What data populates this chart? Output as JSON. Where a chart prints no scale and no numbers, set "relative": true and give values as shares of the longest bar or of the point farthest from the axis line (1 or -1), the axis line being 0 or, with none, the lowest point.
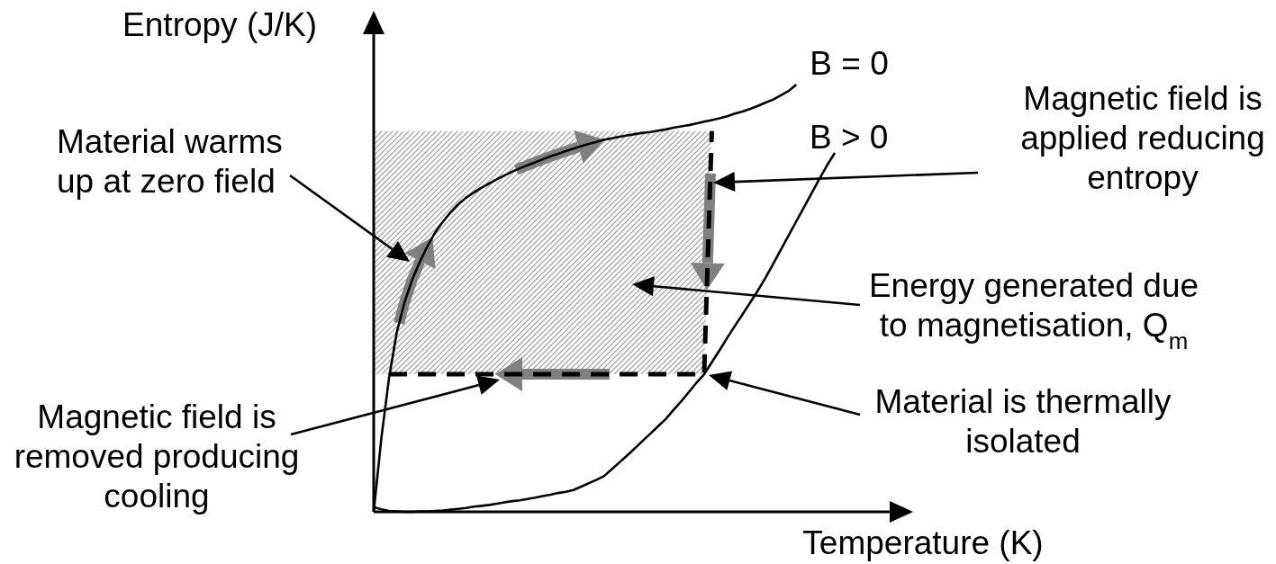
{
  "chart_data": {
    "type": "line",
    "relative": true,
    "xlabel": "Temperature (K)",
    "ylabel": "Entropy (J/K)",
    "categories": [
      null,
      null,
      null,
      null,
      null,
      null,
      null,
      null,
      null,
      null,
      null,
      null,
      null,
      null,
      null,
      null,
      null,
      null,
      null,
      null,
      null,
      null,
      null,
      null,
      null,
      null,
      null,
      null,
      null,
      null,
      null,
      null,
      null,
      null,
      null,
      null,
      null,
      null,
      null,
      null,
      null,
      null,
      null,
      null,
      null,
      null,
      null,
      null,
      null,
      null,
      null,
      null,
      null,
      null,
      null,
      null,
      null,
      null,
      null,
      null,
      null
    ],
    "series": [
      {
        "color": "#a6a6a6",
        "values": [
          null,
          null,
          null,
          null,
          null,
          null,
          null,
          null,
          null,
          null,
          null,
          null,
          null,
          null,
          null,
          null,
          null,
          null,
          null,
          null,
          null,
          null,
          null,
          null,
          null,
          null,
          null,
          null,
          null,
          null,
          null,
          null,
          null,
          null,
          null,
          null,
          null,
          null,
          null,
          null,
          null,
          null,
          null,
          null,
          null,
          null,
          null,
          null,
          null,
          null,
          null,
          null,
          null,
          null,
          null,
          null,
          null,
          null,
          null,
          null,
          null
        ],
        "upper": [
          0.891,
          0.891,
          0.891,
          0.891,
          0.891,
          0.891,
          0.891,
          0.891,
          0.891,
          0.891,
          0.891,
          0.891,
          0.891,
          0.891,
          0.891,
          0.891,
          0.891,
          0.891,
          0.891,
          0.891,
          0.891,
          0.891,
          0.891,
          0.891,
          0.891,
          0.891,
          0.891,
          0.891,
          0.891,
          0.891,
          0.891,
          0.891,
          0.891,
          0.891,
          0.891,
          0.891,
          0.891,
          0.891,
          0.891,
          0.891,
          0.891,
          0.891,
          0.891,
          0.891,
          0.891,
          null,
          null,
          null,
          null,
          null,
          null,
          null,
          null,
          null,
          null,
          null,
          null,
          null,
          null,
          null,
          null
        ],
        "lower": [
          0.322,
          0.322,
          0.322,
          0.322,
          0.322,
          0.322,
          0.322,
          0.322,
          0.322,
          0.322,
          0.322,
          0.322,
          0.322,
          0.322,
          0.322,
          0.322,
          0.322,
          0.322,
          0.322,
          0.322,
          0.322,
          0.322,
          0.322,
          0.322,
          0.322,
          0.322,
          0.322,
          0.322,
          0.322,
          0.322,
          0.322,
          0.322,
          0.322,
          0.322,
          0.322,
          0.322,
          0.322,
          0.322,
          0.322,
          0.322,
          0.322,
          0.322,
          0.322,
          0.322,
          0.891,
          null,
          null,
          null,
          null,
          null,
          null,
          null,
          null,
          null,
          null,
          null,
          null,
          null,
          null,
          null,
          null
        ]
      },
      {
        "name": "B = 0",
        "color": "#000000",
        "values": [
          0,
          0.173,
          0.314,
          0.42,
          0.49,
          0.543,
          0.585,
          0.622,
          0.654,
          0.679,
          0.701,
          0.72,
          0.735,
          0.747,
          0.758,
          0.768,
          0.778,
          0.787,
          0.796,
          0.804,
          0.811,
          0.818,
          0.825,
          0.832,
          0.838,
          0.844,
          0.85,
          0.856,
          0.861,
          0.866,
          0.871,
          0.874,
          0.878,
          0.881,
          0.884,
          0.887,
          0.889,
          0.892,
          0.895,
          0.899,
          0.902,
          0.905,
          0.909,
          0.913,
          0.917,
          0.921,
          0.926,
          0.932,
          0.937,
          0.943,
          0.95,
          0.958,
          0.965,
          0.975,
          0.985,
          1,
          null,
          null,
          null,
          null,
          null
        ]
      },
      {
        "name": "B > 0",
        "color": "#000000",
        "values": [
          0.011,
          0.006,
          0.002,
          0.001,
          0,
          0,
          0.001,
          0.001,
          0.002,
          0.003,
          0.005,
          0.007,
          0.009,
          0.012,
          0.014,
          0.016,
          0.019,
          0.022,
          0.025,
          0.027,
          0.03,
          0.033,
          0.037,
          0.04,
          0.044,
          0.047,
          0.051,
          0.059,
          0.067,
          0.075,
          0.084,
          0.1,
          0.116,
          0.132,
          0.149,
          0.166,
          0.183,
          0.2,
          0.217,
          0.238,
          0.258,
          0.28,
          0.302,
          0.322,
          0.35,
          0.378,
          0.407,
          0.435,
          0.462,
          0.49,
          0.518,
          0.548,
          0.581,
          0.614,
          0.647,
          0.68,
          0.713,
          0.746,
          0.779,
          0.811,
          0.84
        ]
      },
      {
        "color": "#000000",
        "line_style": "dashed",
        "values": [
          null,
          null,
          0.322,
          0.322,
          0.322,
          0.322,
          0.322,
          0.322,
          0.322,
          0.322,
          0.322,
          0.322,
          0.322,
          0.322,
          0.322,
          0.322,
          0.322,
          0.322,
          0.322,
          0.322,
          0.322,
          0.322,
          0.322,
          0.322,
          0.322,
          0.322,
          0.322,
          0.322,
          0.322,
          0.322,
          0.322,
          0.322,
          0.322,
          0.322,
          0.322,
          0.322,
          0.322,
          0.322,
          0.322,
          0.322,
          0.322,
          0.322,
          0.322,
          0.322,
          0.891,
          null,
          null,
          null,
          null,
          null,
          null,
          null,
          null,
          null,
          null,
          null,
          null,
          null,
          null,
          null,
          null
        ]
      }
    ],
    "annotations": [
      "Material warms up at zero field",
      "Magnetic field is applied reducing entropy",
      "Energy generated due to magnetisation, Q$_{m}$",
      "Material is thermally isolated",
      "Magnetic field is removed producing cooling"
    ]
  }
}
